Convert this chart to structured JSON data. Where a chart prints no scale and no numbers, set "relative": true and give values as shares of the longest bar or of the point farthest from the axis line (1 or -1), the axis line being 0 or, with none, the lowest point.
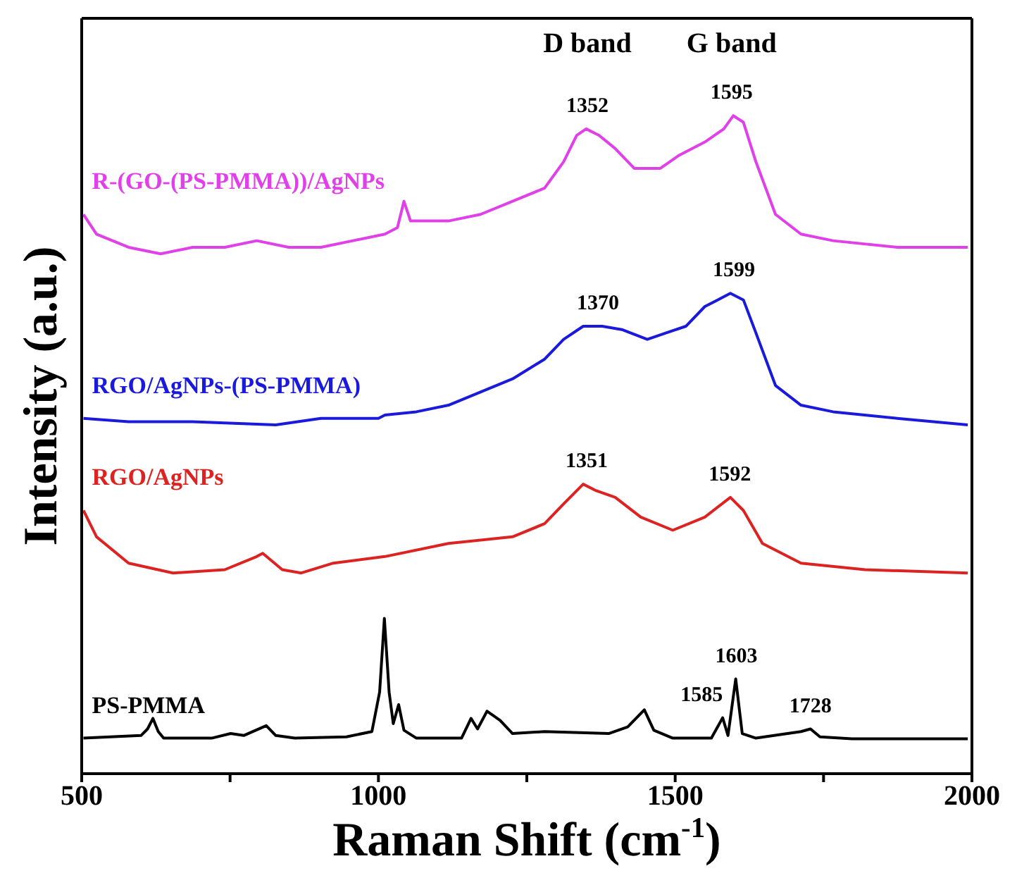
{
  "chart_data": {
    "type": "line",
    "relative": true,
    "xlabel": "Raman Shift (cm$^{-1}$)",
    "ylabel": "Intensity (a.u.)",
    "xlim": [
      500,
      2000
    ],
    "xticks": [
      500,
      {
        "value": 750,
        "label": null
      },
      1000,
      {
        "value": 1250,
        "label": null
      },
      1500,
      {
        "value": 1750,
        "label": null
      },
      2000
    ],
    "marker": "none",
    "line_style": "solid",
    "series": [
      {
        "name": "R-(GO-(PS-PMMA))/AgNPs",
        "color": "#e040e8",
        "x": [
          503,
          525,
          579,
          633,
          687,
          741,
          795,
          849,
          903,
          957,
          1011,
          1032,
          1043,
          1054,
          1118,
          1172,
          1226,
          1280,
          1312,
          1334,
          1350,
          1372,
          1399,
          1431,
          1475,
          1507,
          1550,
          1582,
          1598,
          1615,
          1636,
          1669,
          1712,
          1766,
          1874,
          1928,
          1993
        ],
        "values": [
          0.85,
          0.82,
          0.8,
          0.79,
          0.8,
          0.8,
          0.81,
          0.8,
          0.8,
          0.81,
          0.82,
          0.83,
          0.87,
          0.84,
          0.84,
          0.85,
          0.87,
          0.89,
          0.93,
          0.97,
          0.98,
          0.97,
          0.95,
          0.92,
          0.92,
          0.94,
          0.96,
          0.98,
          1.0,
          0.99,
          0.93,
          0.85,
          0.82,
          0.81,
          0.8,
          0.8,
          0.8
        ]
      },
      {
        "name": "RGO/AgNPs-(PS-PMMA)",
        "color": "#1a1adc",
        "x": [
          503,
          579,
          687,
          827,
          903,
          1000,
          1011,
          1064,
          1118,
          1172,
          1226,
          1280,
          1312,
          1345,
          1377,
          1410,
          1453,
          1485,
          1518,
          1550,
          1593,
          1615,
          1636,
          1669,
          1712,
          1766,
          1874,
          1993
        ],
        "values": [
          0.54,
          0.535,
          0.535,
          0.53,
          0.54,
          0.54,
          0.545,
          0.55,
          0.56,
          0.58,
          0.6,
          0.63,
          0.66,
          0.68,
          0.68,
          0.675,
          0.66,
          0.67,
          0.68,
          0.71,
          0.73,
          0.72,
          0.67,
          0.59,
          0.56,
          0.55,
          0.54,
          0.53
        ]
      },
      {
        "name": "RGO/AgNPs",
        "color": "#dd2222",
        "x": [
          503,
          525,
          579,
          654,
          741,
          795,
          805,
          838,
          870,
          924,
          1011,
          1118,
          1226,
          1280,
          1312,
          1345,
          1367,
          1399,
          1442,
          1496,
          1550,
          1593,
          1615,
          1647,
          1712,
          1820,
          1993
        ],
        "values": [
          0.4,
          0.36,
          0.32,
          0.305,
          0.31,
          0.33,
          0.335,
          0.31,
          0.305,
          0.32,
          0.33,
          0.35,
          0.36,
          0.38,
          0.41,
          0.44,
          0.43,
          0.42,
          0.39,
          0.37,
          0.39,
          0.42,
          0.4,
          0.35,
          0.32,
          0.31,
          0.305
        ]
      },
      {
        "name": "PS-PMMA",
        "color": "#000000",
        "x": [
          503,
          600,
          611,
          620,
          629,
          638,
          719,
          751,
          773,
          811,
          827,
          859,
          946,
          989,
          1002,
          1010,
          1018,
          1025,
          1034,
          1043,
          1064,
          1140,
          1156,
          1167,
          1183,
          1205,
          1226,
          1280,
          1388,
          1420,
          1448,
          1464,
          1496,
          1561,
          1580,
          1589,
          1602,
          1613,
          1636,
          1712,
          1728,
          1744,
          1798,
          1993
        ],
        "values": [
          0.054,
          0.058,
          0.068,
          0.084,
          0.064,
          0.054,
          0.054,
          0.061,
          0.058,
          0.073,
          0.058,
          0.054,
          0.056,
          0.064,
          0.124,
          0.236,
          0.124,
          0.076,
          0.105,
          0.066,
          0.054,
          0.054,
          0.084,
          0.068,
          0.095,
          0.081,
          0.061,
          0.064,
          0.061,
          0.071,
          0.097,
          0.066,
          0.054,
          0.054,
          0.085,
          0.058,
          0.144,
          0.061,
          0.054,
          0.064,
          0.068,
          0.056,
          0.053,
          0.053
        ]
      }
    ],
    "annotations": [
      "D band",
      "G band",
      {
        "text": "1352",
        "x": 1352,
        "y": 0.98
      },
      {
        "text": "1595",
        "x": 1595,
        "y": 1.0
      },
      {
        "text": "1370",
        "x": 1370,
        "y": 0.68
      },
      {
        "text": "1599",
        "x": 1599,
        "y": 0.73
      },
      {
        "text": "1351",
        "x": 1351,
        "y": 0.44
      },
      {
        "text": "1592",
        "x": 1592,
        "y": 0.42
      },
      {
        "text": "1585",
        "x": 1585,
        "y": 0.085
      },
      {
        "text": "1603",
        "x": 1603,
        "y": 0.144
      },
      {
        "text": "1728",
        "x": 1728,
        "y": 0.068
      }
    ]
  }
}
